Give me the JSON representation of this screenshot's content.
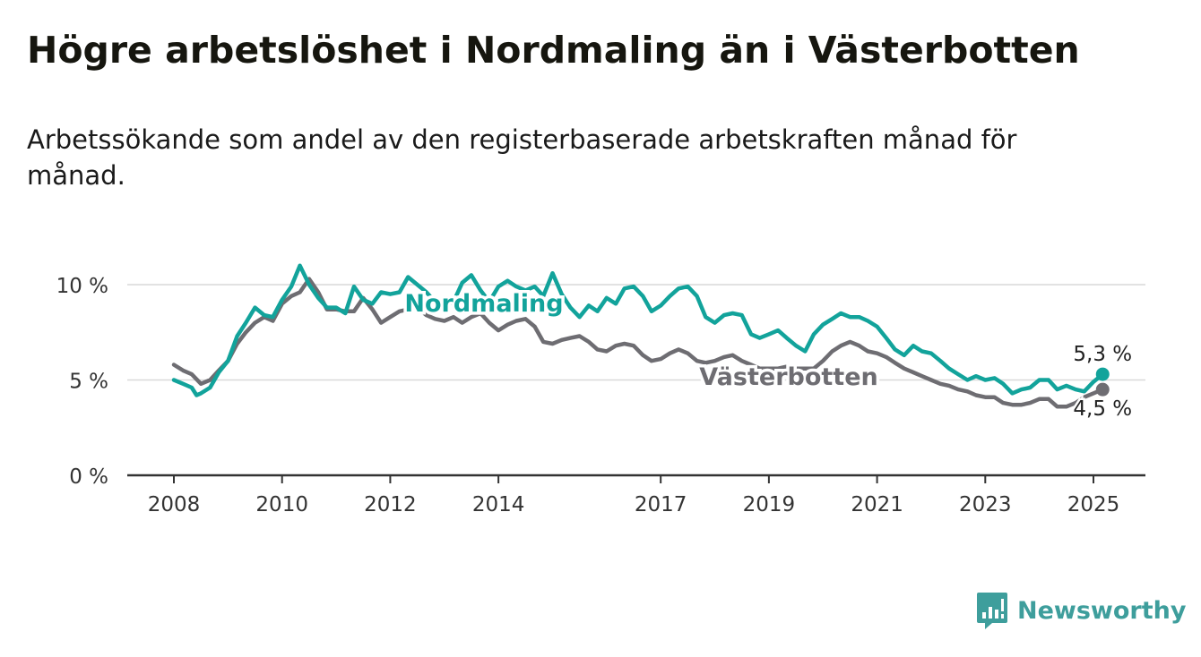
{
  "title": "Högre arbetslöshet i Nordmaling än i Västerbotten",
  "subtitle": "Arbetssökande som andel av den registerbaserade arbetskraften månad för månad.",
  "brand": {
    "name": "Newsworthy",
    "color": "#3e9e9c",
    "icon": "bar-chart-speech-bubble-icon"
  },
  "chart_data": {
    "type": "line",
    "x_unit": "year",
    "xlim": [
      2008,
      2025
    ],
    "ylim": [
      0,
      10
    ],
    "grid": true,
    "x_ticks": [
      {
        "value": 2008,
        "label": "2008"
      },
      {
        "value": 2010,
        "label": "2010"
      },
      {
        "value": 2012,
        "label": "2012"
      },
      {
        "value": 2014,
        "label": "2014"
      },
      {
        "value": 2017,
        "label": "2017"
      },
      {
        "value": 2019,
        "label": "2019"
      },
      {
        "value": 2021,
        "label": "2021"
      },
      {
        "value": 2023,
        "label": "2023"
      },
      {
        "value": 2025,
        "label": "2025"
      }
    ],
    "y_ticks": [
      {
        "value": 0,
        "label": "0 %"
      },
      {
        "value": 5,
        "label": "5 %"
      },
      {
        "value": 10,
        "label": "10 %"
      }
    ],
    "series": [
      {
        "name": "Västerbotten",
        "color": "#6e6d72",
        "end_label": "4,5 %",
        "points": [
          [
            2008.0,
            5.8
          ],
          [
            2008.17,
            5.5
          ],
          [
            2008.33,
            5.3
          ],
          [
            2008.5,
            4.8
          ],
          [
            2008.67,
            5.0
          ],
          [
            2008.83,
            5.5
          ],
          [
            2009.0,
            6.0
          ],
          [
            2009.17,
            6.9
          ],
          [
            2009.33,
            7.5
          ],
          [
            2009.5,
            8.0
          ],
          [
            2009.67,
            8.3
          ],
          [
            2009.83,
            8.1
          ],
          [
            2010.0,
            9.0
          ],
          [
            2010.17,
            9.4
          ],
          [
            2010.33,
            9.6
          ],
          [
            2010.5,
            10.3
          ],
          [
            2010.67,
            9.6
          ],
          [
            2010.83,
            8.7
          ],
          [
            2011.0,
            8.7
          ],
          [
            2011.17,
            8.6
          ],
          [
            2011.33,
            8.6
          ],
          [
            2011.5,
            9.3
          ],
          [
            2011.67,
            8.7
          ],
          [
            2011.83,
            8.0
          ],
          [
            2012.0,
            8.3
          ],
          [
            2012.17,
            8.6
          ],
          [
            2012.33,
            8.7
          ],
          [
            2012.5,
            8.8
          ],
          [
            2012.67,
            8.4
          ],
          [
            2012.83,
            8.2
          ],
          [
            2013.0,
            8.1
          ],
          [
            2013.17,
            8.3
          ],
          [
            2013.33,
            8.0
          ],
          [
            2013.5,
            8.3
          ],
          [
            2013.67,
            8.5
          ],
          [
            2013.83,
            8.0
          ],
          [
            2014.0,
            7.6
          ],
          [
            2014.17,
            7.9
          ],
          [
            2014.33,
            8.1
          ],
          [
            2014.5,
            8.2
          ],
          [
            2014.67,
            7.8
          ],
          [
            2014.83,
            7.0
          ],
          [
            2015.0,
            6.9
          ],
          [
            2015.17,
            7.1
          ],
          [
            2015.33,
            7.2
          ],
          [
            2015.5,
            7.3
          ],
          [
            2015.67,
            7.0
          ],
          [
            2015.83,
            6.6
          ],
          [
            2016.0,
            6.5
          ],
          [
            2016.17,
            6.8
          ],
          [
            2016.33,
            6.9
          ],
          [
            2016.5,
            6.8
          ],
          [
            2016.67,
            6.3
          ],
          [
            2016.83,
            6.0
          ],
          [
            2017.0,
            6.1
          ],
          [
            2017.17,
            6.4
          ],
          [
            2017.33,
            6.6
          ],
          [
            2017.5,
            6.4
          ],
          [
            2017.67,
            6.0
          ],
          [
            2017.83,
            5.9
          ],
          [
            2018.0,
            6.0
          ],
          [
            2018.17,
            6.2
          ],
          [
            2018.33,
            6.3
          ],
          [
            2018.5,
            6.0
          ],
          [
            2018.67,
            5.8
          ],
          [
            2018.83,
            5.6
          ],
          [
            2019.0,
            5.6
          ],
          [
            2019.17,
            5.6
          ],
          [
            2019.33,
            5.7
          ],
          [
            2019.5,
            5.6
          ],
          [
            2019.67,
            5.6
          ],
          [
            2019.83,
            5.6
          ],
          [
            2020.0,
            6.0
          ],
          [
            2020.17,
            6.5
          ],
          [
            2020.33,
            6.8
          ],
          [
            2020.5,
            7.0
          ],
          [
            2020.67,
            6.8
          ],
          [
            2020.83,
            6.5
          ],
          [
            2021.0,
            6.4
          ],
          [
            2021.17,
            6.2
          ],
          [
            2021.33,
            5.9
          ],
          [
            2021.5,
            5.6
          ],
          [
            2021.67,
            5.4
          ],
          [
            2021.83,
            5.2
          ],
          [
            2022.0,
            5.0
          ],
          [
            2022.17,
            4.8
          ],
          [
            2022.33,
            4.7
          ],
          [
            2022.5,
            4.5
          ],
          [
            2022.67,
            4.4
          ],
          [
            2022.83,
            4.2
          ],
          [
            2023.0,
            4.1
          ],
          [
            2023.17,
            4.1
          ],
          [
            2023.33,
            3.8
          ],
          [
            2023.5,
            3.7
          ],
          [
            2023.67,
            3.7
          ],
          [
            2023.83,
            3.8
          ],
          [
            2024.0,
            4.0
          ],
          [
            2024.17,
            4.0
          ],
          [
            2024.33,
            3.6
          ],
          [
            2024.5,
            3.6
          ],
          [
            2024.67,
            3.8
          ],
          [
            2024.83,
            4.1
          ],
          [
            2025.0,
            4.3
          ],
          [
            2025.17,
            4.5
          ]
        ]
      },
      {
        "name": "Nordmaling",
        "color": "#12a39b",
        "end_label": "5,3 %",
        "points": [
          [
            2008.0,
            5.0
          ],
          [
            2008.17,
            4.8
          ],
          [
            2008.33,
            4.6
          ],
          [
            2008.42,
            4.2
          ],
          [
            2008.5,
            4.3
          ],
          [
            2008.67,
            4.6
          ],
          [
            2008.83,
            5.4
          ],
          [
            2009.0,
            6.0
          ],
          [
            2009.17,
            7.3
          ],
          [
            2009.33,
            8.0
          ],
          [
            2009.5,
            8.8
          ],
          [
            2009.67,
            8.4
          ],
          [
            2009.83,
            8.3
          ],
          [
            2010.0,
            9.2
          ],
          [
            2010.17,
            9.9
          ],
          [
            2010.33,
            11.0
          ],
          [
            2010.5,
            10.0
          ],
          [
            2010.67,
            9.3
          ],
          [
            2010.83,
            8.8
          ],
          [
            2011.0,
            8.8
          ],
          [
            2011.17,
            8.5
          ],
          [
            2011.33,
            9.9
          ],
          [
            2011.5,
            9.2
          ],
          [
            2011.67,
            9.0
          ],
          [
            2011.83,
            9.6
          ],
          [
            2012.0,
            9.5
          ],
          [
            2012.17,
            9.6
          ],
          [
            2012.33,
            10.4
          ],
          [
            2012.5,
            10.0
          ],
          [
            2012.67,
            9.6
          ],
          [
            2012.83,
            9.1
          ],
          [
            2013.0,
            8.9
          ],
          [
            2013.17,
            9.1
          ],
          [
            2013.33,
            10.1
          ],
          [
            2013.5,
            10.5
          ],
          [
            2013.67,
            9.7
          ],
          [
            2013.83,
            9.1
          ],
          [
            2014.0,
            9.9
          ],
          [
            2014.17,
            10.2
          ],
          [
            2014.33,
            9.9
          ],
          [
            2014.5,
            9.7
          ],
          [
            2014.67,
            9.9
          ],
          [
            2014.83,
            9.4
          ],
          [
            2015.0,
            10.6
          ],
          [
            2015.17,
            9.5
          ],
          [
            2015.33,
            8.8
          ],
          [
            2015.5,
            8.3
          ],
          [
            2015.67,
            8.9
          ],
          [
            2015.83,
            8.6
          ],
          [
            2016.0,
            9.3
          ],
          [
            2016.17,
            9.0
          ],
          [
            2016.33,
            9.8
          ],
          [
            2016.5,
            9.9
          ],
          [
            2016.67,
            9.4
          ],
          [
            2016.83,
            8.6
          ],
          [
            2017.0,
            8.9
          ],
          [
            2017.17,
            9.4
          ],
          [
            2017.33,
            9.8
          ],
          [
            2017.5,
            9.9
          ],
          [
            2017.67,
            9.4
          ],
          [
            2017.83,
            8.3
          ],
          [
            2018.0,
            8.0
          ],
          [
            2018.17,
            8.4
          ],
          [
            2018.33,
            8.5
          ],
          [
            2018.5,
            8.4
          ],
          [
            2018.67,
            7.4
          ],
          [
            2018.83,
            7.2
          ],
          [
            2019.0,
            7.4
          ],
          [
            2019.17,
            7.6
          ],
          [
            2019.33,
            7.2
          ],
          [
            2019.5,
            6.8
          ],
          [
            2019.67,
            6.5
          ],
          [
            2019.83,
            7.4
          ],
          [
            2020.0,
            7.9
          ],
          [
            2020.17,
            8.2
          ],
          [
            2020.33,
            8.5
          ],
          [
            2020.5,
            8.3
          ],
          [
            2020.67,
            8.3
          ],
          [
            2020.83,
            8.1
          ],
          [
            2021.0,
            7.8
          ],
          [
            2021.17,
            7.2
          ],
          [
            2021.33,
            6.6
          ],
          [
            2021.5,
            6.3
          ],
          [
            2021.67,
            6.8
          ],
          [
            2021.83,
            6.5
          ],
          [
            2022.0,
            6.4
          ],
          [
            2022.17,
            6.0
          ],
          [
            2022.33,
            5.6
          ],
          [
            2022.5,
            5.3
          ],
          [
            2022.67,
            5.0
          ],
          [
            2022.83,
            5.2
          ],
          [
            2023.0,
            5.0
          ],
          [
            2023.17,
            5.1
          ],
          [
            2023.33,
            4.8
          ],
          [
            2023.5,
            4.3
          ],
          [
            2023.67,
            4.5
          ],
          [
            2023.83,
            4.6
          ],
          [
            2024.0,
            5.0
          ],
          [
            2024.17,
            5.0
          ],
          [
            2024.33,
            4.5
          ],
          [
            2024.5,
            4.7
          ],
          [
            2024.67,
            4.5
          ],
          [
            2024.83,
            4.4
          ],
          [
            2025.0,
            4.9
          ],
          [
            2025.17,
            5.3
          ]
        ]
      }
    ]
  }
}
